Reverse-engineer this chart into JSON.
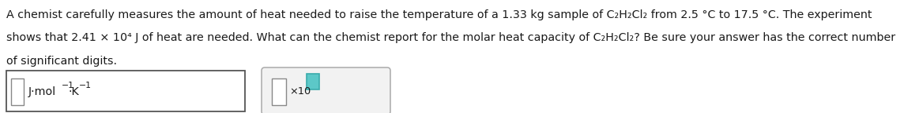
{
  "line1": "A chemist carefully measures the amount of heat needed to raise the temperature of a 1.33 kg sample of C₂H₂Cl₂ from 2.5 °C to 17.5 °C. The experiment",
  "line2": "shows that 2.41 × 10⁴ J of heat are needed. What can the chemist report for the molar heat capacity of C₂H₂Cl₂? Be sure your answer has the correct number",
  "line3": "of significant digits.",
  "units_text": "J·mol",
  "sup1": "−1",
  "dot_k": "·K",
  "sup2": "−1",
  "x10_text": "×10",
  "bg_color": "#ffffff",
  "text_color": "#1a1a1a",
  "font_size": 10.3,
  "box1_edge": "#555555",
  "box2_edge": "#aaaaaa",
  "inner_edge": "#888888",
  "teal_fill": "#5cc8c8",
  "teal_edge": "#3aacac",
  "box2_fill": "#f2f2f2"
}
